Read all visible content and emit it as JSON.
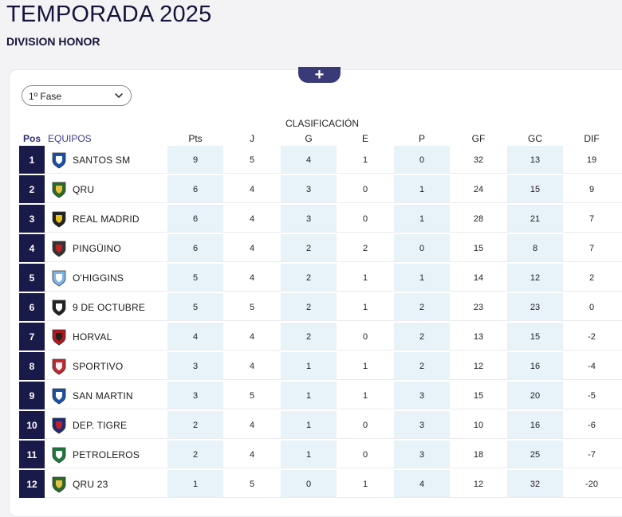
{
  "page": {
    "title": "TEMPORADA 2025",
    "subtitle": "DIVISION HONOR"
  },
  "filter": {
    "phase_selected": "1º Fase",
    "expand_icon": "plus-icon",
    "dropdown_icon": "chevron-down-icon"
  },
  "standings": {
    "section_label": "CLASIFICACIÓN",
    "headers": {
      "pos": "Pos",
      "teams": "EQUIPOS",
      "pts": "Pts",
      "j": "J",
      "g": "G",
      "e": "E",
      "p": "P",
      "gf": "GF",
      "gc": "GC",
      "dif": "DIF"
    },
    "colors": {
      "pos_bg": "#1a1a4a",
      "shaded_col": "#e7f2f9",
      "accent": "#3a3a78"
    },
    "rows": [
      {
        "pos": "1",
        "team": "SANTOS SM",
        "pts": "9",
        "j": "5",
        "g": "4",
        "e": "1",
        "p": "0",
        "gf": "32",
        "gc": "13",
        "dif": "19",
        "badge": "santos-sm-crest"
      },
      {
        "pos": "2",
        "team": "QRU",
        "pts": "6",
        "j": "4",
        "g": "3",
        "e": "0",
        "p": "1",
        "gf": "24",
        "gc": "15",
        "dif": "9",
        "badge": "qru-crest"
      },
      {
        "pos": "3",
        "team": "REAL MADRID",
        "pts": "6",
        "j": "4",
        "g": "3",
        "e": "0",
        "p": "1",
        "gf": "28",
        "gc": "21",
        "dif": "7",
        "badge": "real-madrid-crest"
      },
      {
        "pos": "4",
        "team": "PINGÜINO",
        "pts": "6",
        "j": "4",
        "g": "2",
        "e": "2",
        "p": "0",
        "gf": "15",
        "gc": "8",
        "dif": "7",
        "badge": "pinguino-crest"
      },
      {
        "pos": "5",
        "team": "O'HIGGINS",
        "pts": "5",
        "j": "4",
        "g": "2",
        "e": "1",
        "p": "1",
        "gf": "14",
        "gc": "12",
        "dif": "2",
        "badge": "ohiggins-crest"
      },
      {
        "pos": "6",
        "team": "9 DE OCTUBRE",
        "pts": "5",
        "j": "5",
        "g": "2",
        "e": "1",
        "p": "2",
        "gf": "23",
        "gc": "23",
        "dif": "0",
        "badge": "9-de-octubre-crest"
      },
      {
        "pos": "7",
        "team": "HORVAL",
        "pts": "4",
        "j": "4",
        "g": "2",
        "e": "0",
        "p": "2",
        "gf": "13",
        "gc": "15",
        "dif": "-2",
        "badge": "horval-crest"
      },
      {
        "pos": "8",
        "team": "SPORTIVO",
        "pts": "3",
        "j": "4",
        "g": "1",
        "e": "1",
        "p": "2",
        "gf": "12",
        "gc": "16",
        "dif": "-4",
        "badge": "sportivo-crest"
      },
      {
        "pos": "9",
        "team": "SAN MARTIN",
        "pts": "3",
        "j": "5",
        "g": "1",
        "e": "1",
        "p": "3",
        "gf": "15",
        "gc": "20",
        "dif": "-5",
        "badge": "san-martin-crest"
      },
      {
        "pos": "10",
        "team": "DEP. TIGRE",
        "pts": "2",
        "j": "4",
        "g": "1",
        "e": "0",
        "p": "3",
        "gf": "10",
        "gc": "16",
        "dif": "-6",
        "badge": "dep-tigre-crest"
      },
      {
        "pos": "11",
        "team": "PETROLEROS",
        "pts": "2",
        "j": "4",
        "g": "1",
        "e": "0",
        "p": "3",
        "gf": "18",
        "gc": "25",
        "dif": "-7",
        "badge": "petroleros-crest"
      },
      {
        "pos": "12",
        "team": "QRU 23",
        "pts": "1",
        "j": "5",
        "g": "0",
        "e": "1",
        "p": "4",
        "gf": "12",
        "gc": "32",
        "dif": "-20",
        "badge": "qru-23-crest"
      }
    ]
  }
}
